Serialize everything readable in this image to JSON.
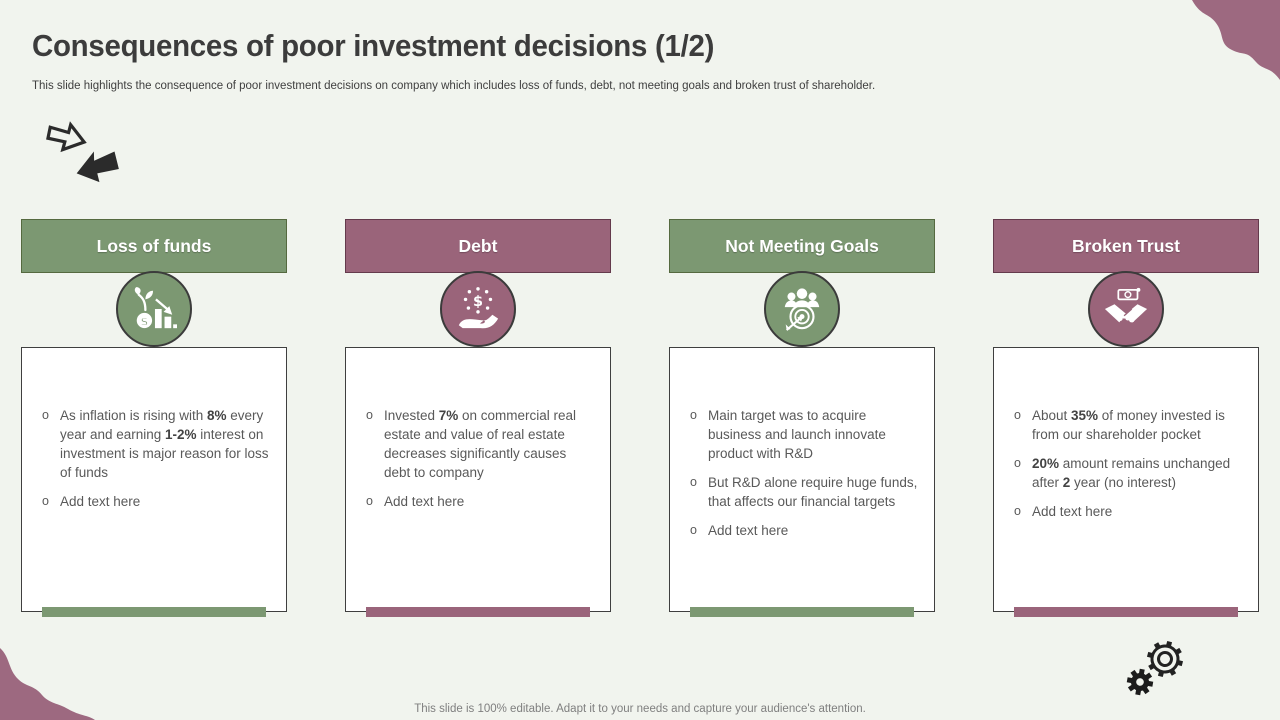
{
  "slide": {
    "title": "Consequences of poor investment decisions (1/2)",
    "subtitle": "This slide highlights the consequence of poor investment decisions on company which includes loss of funds, debt, not meeting goals and broken trust of shareholder.",
    "footer": "This slide is 100% editable. Adapt it to your needs and capture your audience's attention."
  },
  "colors": {
    "green": "#7c9872",
    "mauve": "#9a647a",
    "background": "#f1f4ee",
    "title_text": "#3c3c3c",
    "body_text": "#595959"
  },
  "decorations": {
    "top_left": "double-arrow-icon",
    "bottom_right": "gears-icon",
    "corners": "wavy-mauve-blobs"
  },
  "columns": [
    {
      "label": "Loss of funds",
      "theme": "green",
      "icon": "money-plant-decline-icon",
      "bullets": [
        "As inflation is rising with **8%** every year and earning **1-2%** interest on investment is major reason for loss of funds",
        "Add text here"
      ]
    },
    {
      "label": "Debt",
      "theme": "mauve",
      "icon": "hand-dollar-icon",
      "bullets": [
        "Invested **7%** on commercial real estate and value of real estate decreases significantly causes debt to company",
        "Add text here"
      ]
    },
    {
      "label": "Not Meeting Goals",
      "theme": "green",
      "icon": "team-target-icon",
      "bullets": [
        "Main target was to acquire business and launch innovate product with R&D",
        "But R&D alone require huge funds, that affects our financial targets",
        "Add text here"
      ]
    },
    {
      "label": "Broken Trust",
      "theme": "mauve",
      "icon": "handshake-money-icon",
      "bullets": [
        "About **35%** of money invested is from our shareholder pocket",
        "**20%** amount remains unchanged after **2** year (no interest)",
        "Add text here"
      ]
    }
  ]
}
